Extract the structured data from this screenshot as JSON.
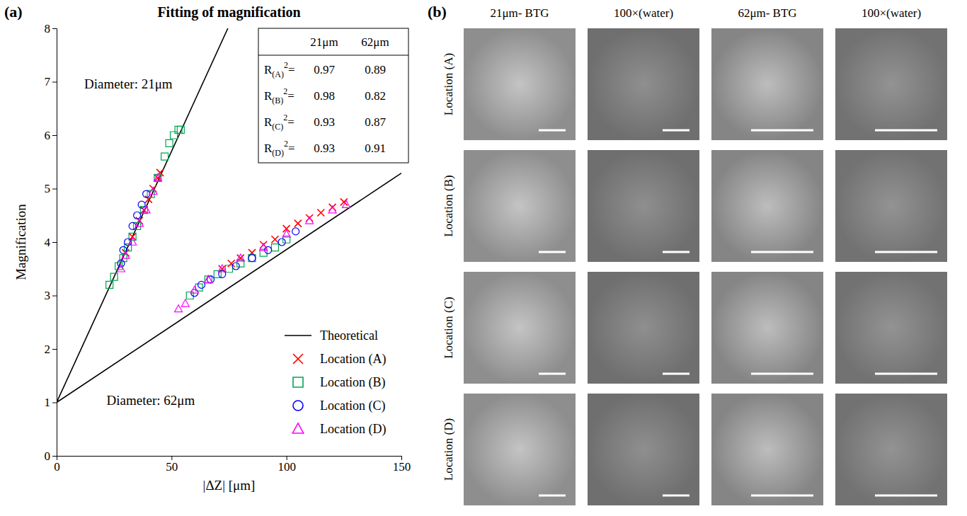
{
  "chart_data": {
    "type": "scatter",
    "panel_label": "(a)",
    "title": "Fitting of magnification",
    "x_label": "|ΔZ| [μm]",
    "y_label": "Magnification",
    "xlim": [
      0,
      150
    ],
    "ylim": [
      0,
      8
    ],
    "xticks": [
      0,
      50,
      100,
      150
    ],
    "yticks": [
      0,
      1,
      2,
      3,
      4,
      5,
      6,
      7,
      8
    ],
    "legend": "lower right",
    "annotations": [
      {
        "text": "Diameter: 21μm"
      },
      {
        "text": "Diameter: 62μm"
      }
    ],
    "series": [
      {
        "name": "Theoretical",
        "type": "line",
        "color": "#000000",
        "line_style": "solid",
        "x": [
          0,
          74.5,
          null,
          0,
          150
        ],
        "values": [
          1,
          8,
          null,
          1,
          5.29
        ]
      },
      {
        "name": "Location (A)",
        "type": "scatter",
        "color": "#ff0000",
        "marker": "x",
        "x": [
          30,
          33,
          36,
          38,
          40,
          42,
          44,
          45,
          72,
          76,
          80,
          85,
          90,
          95,
          100,
          105,
          110,
          115,
          120,
          125
        ],
        "values": [
          3.8,
          4.1,
          4.4,
          4.6,
          4.8,
          5.0,
          5.2,
          5.3,
          3.5,
          3.6,
          3.7,
          3.8,
          3.95,
          4.05,
          4.25,
          4.35,
          4.45,
          4.55,
          4.65,
          4.75
        ]
      },
      {
        "name": "Location (B)",
        "type": "scatter",
        "color": "#00a650",
        "marker": "square",
        "x": [
          23,
          25,
          27,
          29,
          31,
          33,
          35,
          38,
          41,
          44,
          47,
          49,
          51,
          53,
          54,
          58,
          62,
          66,
          70,
          75,
          80,
          85,
          90,
          95,
          100
        ],
        "values": [
          3.2,
          3.35,
          3.55,
          3.7,
          3.9,
          4.1,
          4.3,
          4.6,
          4.9,
          5.2,
          5.6,
          5.85,
          6.0,
          6.1,
          6.1,
          3.0,
          3.15,
          3.3,
          3.4,
          3.5,
          3.6,
          3.7,
          3.8,
          3.9,
          4.05
        ]
      },
      {
        "name": "Location (C)",
        "type": "scatter",
        "color": "#0000ff",
        "marker": "circle",
        "x": [
          28,
          29,
          31,
          33,
          35,
          37,
          39,
          60,
          63,
          67,
          72,
          78,
          85,
          92,
          98,
          104
        ],
        "values": [
          3.6,
          3.85,
          4.0,
          4.3,
          4.5,
          4.7,
          4.9,
          3.05,
          3.2,
          3.3,
          3.4,
          3.55,
          3.7,
          3.85,
          4.0,
          4.2
        ]
      },
      {
        "name": "Location (D)",
        "type": "scatter",
        "color": "#ff00ff",
        "marker": "triangle",
        "x": [
          28,
          30,
          33,
          36,
          39,
          42,
          44,
          53,
          56,
          60,
          66,
          72,
          80,
          90,
          100,
          110,
          120,
          126
        ],
        "values": [
          3.5,
          3.75,
          4.0,
          4.35,
          4.6,
          4.95,
          5.2,
          2.75,
          2.85,
          3.1,
          3.3,
          3.5,
          3.7,
          3.9,
          4.15,
          4.4,
          4.6,
          4.7
        ]
      }
    ],
    "r_squared_table": {
      "columns": [
        "21μm",
        "62μm"
      ],
      "rows": [
        {
          "label": {
            "base": "R",
            "sub": "(A)",
            "sup": "2",
            "suffix": "="
          },
          "values": [
            0.97,
            0.89
          ]
        },
        {
          "label": {
            "base": "R",
            "sub": "(B)",
            "sup": "2",
            "suffix": "="
          },
          "values": [
            0.98,
            0.82
          ]
        },
        {
          "label": {
            "base": "R",
            "sub": "(C)",
            "sup": "2",
            "suffix": "="
          },
          "values": [
            0.93,
            0.87
          ]
        },
        {
          "label": {
            "base": "R",
            "sub": "(D)",
            "sup": "2",
            "suffix": "="
          },
          "values": [
            0.93,
            0.91
          ]
        }
      ]
    }
  },
  "image_grid": {
    "panel_label": "(b)",
    "columns": [
      "21μm- BTG",
      "100×(water)",
      "62μm- BTG",
      "100×(water)"
    ],
    "rows": [
      "Location (A)",
      "Location (B)",
      "Location (C)",
      "Location (D)"
    ]
  }
}
